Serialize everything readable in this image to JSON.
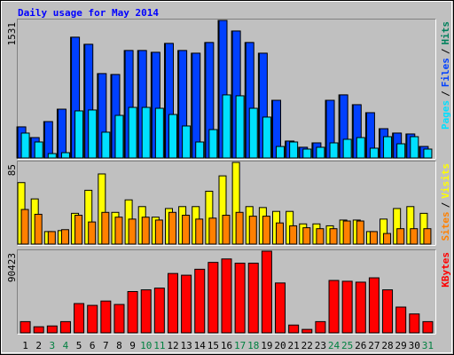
{
  "chart_data": [
    {
      "type": "bar",
      "title": "Daily usage for May 2014",
      "categories": [
        "1",
        "2",
        "3",
        "4",
        "5",
        "6",
        "7",
        "8",
        "9",
        "10",
        "11",
        "12",
        "13",
        "14",
        "15",
        "16",
        "17",
        "18",
        "19",
        "20",
        "21",
        "22",
        "23",
        "24",
        "25",
        "26",
        "27",
        "28",
        "29",
        "30",
        "31"
      ],
      "category_colors": [
        "#000000",
        "#000000",
        "#008040",
        "#008040",
        "#000000",
        "#000000",
        "#000000",
        "#000000",
        "#000000",
        "#008040",
        "#008040",
        "#000000",
        "#000000",
        "#000000",
        "#000000",
        "#000000",
        "#008040",
        "#008040",
        "#000000",
        "#000000",
        "#000000",
        "#000000",
        "#000000",
        "#008040",
        "#008040",
        "#000000",
        "#000000",
        "#000000",
        "#000000",
        "#000000",
        "#008040"
      ],
      "legend_separator": "/",
      "ylim": [
        0,
        1531
      ],
      "yticks": [
        1531
      ],
      "series": [
        {
          "name": "Hits",
          "color": "#00805c",
          "values": [
            346,
            227,
            405,
            543,
            1344,
            1265,
            939,
            929,
            1196,
            1196,
            1176,
            1275,
            1196,
            1166,
            1285,
            1531,
            1413,
            1285,
            1166,
            642,
            188,
            119,
            168,
            642,
            702,
            593,
            504,
            326,
            277,
            267,
            128
          ]
        },
        {
          "name": "Files",
          "color": "#0040ff",
          "values": [
            346,
            227,
            405,
            543,
            1344,
            1265,
            939,
            929,
            1196,
            1196,
            1176,
            1275,
            1196,
            1166,
            1285,
            1531,
            1413,
            1285,
            1166,
            642,
            188,
            119,
            168,
            642,
            702,
            593,
            504,
            326,
            277,
            267,
            128
          ]
        },
        {
          "name": "Pages",
          "color": "#00e0ff",
          "values": [
            277,
            178,
            49,
            59,
            524,
            534,
            287,
            474,
            563,
            563,
            553,
            484,
            356,
            178,
            316,
            702,
            692,
            553,
            455,
            128,
            178,
            99,
            119,
            168,
            208,
            227,
            109,
            237,
            158,
            237,
            99
          ]
        }
      ]
    },
    {
      "type": "bar",
      "ylim": [
        0,
        85
      ],
      "yticks": [
        85
      ],
      "series": [
        {
          "name": "Visits",
          "color": "#ffff00",
          "values": [
            64,
            47,
            13,
            14,
            32,
            56,
            73,
            33,
            46,
            39,
            28,
            37,
            39,
            39,
            55,
            71,
            85,
            39,
            38,
            34,
            34,
            21,
            21,
            19,
            25,
            25,
            13,
            26,
            37,
            39,
            32
          ]
        },
        {
          "name": "Sites",
          "color": "#ff8000",
          "values": [
            36,
            31,
            13,
            15,
            30,
            23,
            33,
            28,
            26,
            28,
            25,
            33,
            30,
            26,
            27,
            30,
            33,
            29,
            29,
            22,
            19,
            17,
            16,
            16,
            24,
            24,
            13,
            11,
            16,
            16,
            16
          ]
        }
      ]
    },
    {
      "type": "bar",
      "ylim": [
        0,
        90423
      ],
      "yticks": [
        90423
      ],
      "series": [
        {
          "name": "KBytes",
          "color": "#ff0000",
          "values": [
            12400,
            6700,
            7600,
            12400,
            32400,
            30400,
            35200,
            31400,
            45700,
            47600,
            49500,
            65700,
            63800,
            70400,
            78000,
            81800,
            77100,
            77100,
            90423,
            55200,
            8600,
            3800,
            12400,
            58000,
            57100,
            56100,
            60900,
            47600,
            28500,
            20900,
            12400
          ]
        }
      ]
    }
  ]
}
